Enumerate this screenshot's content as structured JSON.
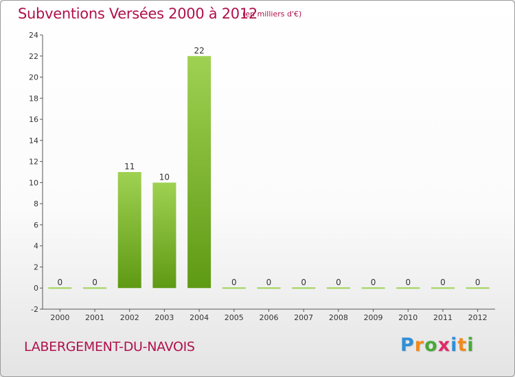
{
  "header": {
    "title": "Subventions Versées 2000 à 2012",
    "subtitle": "(en milliers d'€)"
  },
  "footer": {
    "commune": "LABERGEMENT-DU-NAVOIS",
    "logo_letters": [
      "P",
      "r",
      "o",
      "x",
      "i",
      "t",
      "i"
    ],
    "logo_colors": [
      "#2f8fd8",
      "#f08a1c",
      "#4aa83a",
      "#e02a6a",
      "#2f8fd8",
      "#f08a1c",
      "#4aa83a"
    ]
  },
  "colors": {
    "bar_light": "#9fd152",
    "bar_dark": "#5f9a14",
    "axis": "#555555",
    "grid_tick": "#555555",
    "text": "#333333"
  },
  "chart_data": {
    "type": "bar",
    "categories": [
      "2000",
      "2001",
      "2002",
      "2003",
      "2004",
      "2005",
      "2006",
      "2007",
      "2008",
      "2009",
      "2010",
      "2011",
      "2012"
    ],
    "values": [
      0,
      0,
      11,
      10,
      22,
      0,
      0,
      0,
      0,
      0,
      0,
      0,
      0
    ],
    "data_labels": [
      "0",
      "0",
      "11",
      "10",
      "22",
      "0",
      "0",
      "0",
      "0",
      "0",
      "0",
      "0",
      "0"
    ],
    "y_ticks": [
      "-2",
      "0",
      "2",
      "4",
      "6",
      "8",
      "10",
      "12",
      "14",
      "16",
      "18",
      "20",
      "22",
      "24"
    ],
    "ylim": [
      -2,
      24
    ],
    "grid": false,
    "title": "Subventions Versées 2000 à 2012",
    "xlabel": "",
    "ylabel": ""
  }
}
